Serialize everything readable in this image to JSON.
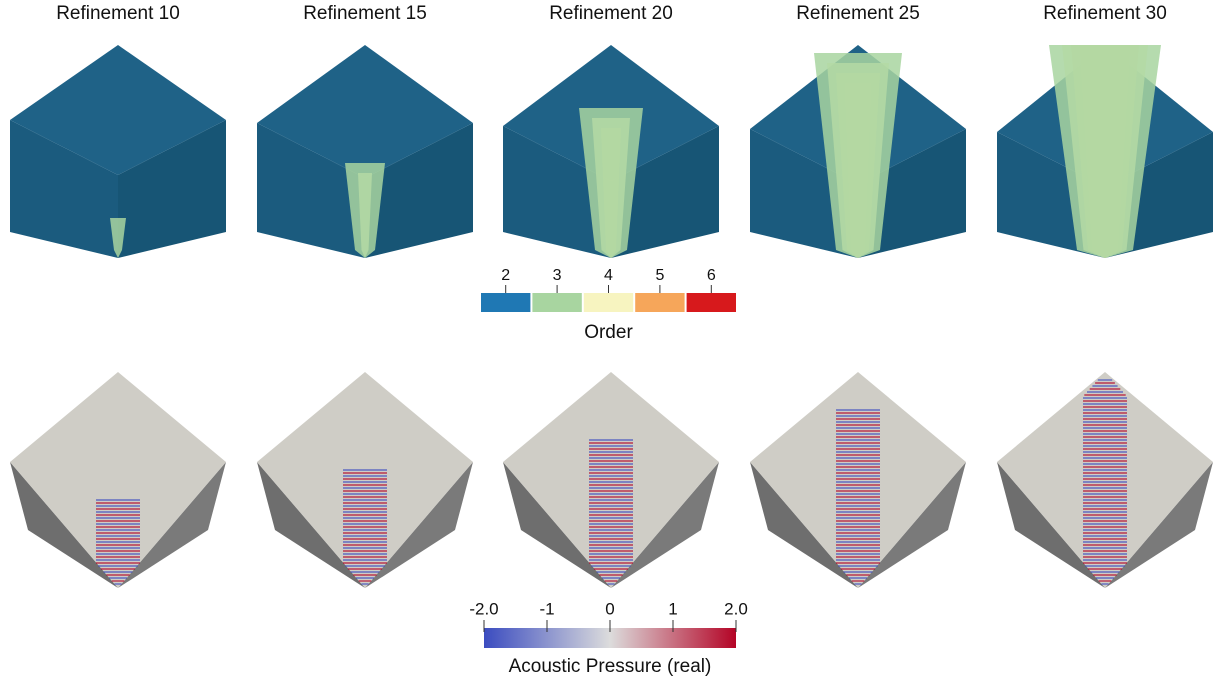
{
  "panels": [
    {
      "title": "Refinement 10"
    },
    {
      "title": "Refinement 15"
    },
    {
      "title": "Refinement 20"
    },
    {
      "title": "Refinement 25"
    },
    {
      "title": "Refinement 30"
    }
  ],
  "order_colorbar": {
    "title": "Order",
    "ticks": [
      2,
      3,
      4,
      5,
      6
    ],
    "colors": [
      "#1f78b4",
      "#a8d5a0",
      "#f7f4c0",
      "#f6a65a",
      "#d7191c"
    ]
  },
  "pressure_colorbar": {
    "title": "Acoustic Pressure (real)",
    "range": [
      -2,
      2
    ],
    "ticks": [
      {
        "value": -2,
        "label": "-2.0"
      },
      -1,
      0,
      1,
      {
        "value": 2,
        "label": "2.0"
      }
    ],
    "colormap": [
      "#3b4cc0",
      "#dcdcdc",
      "#b40426"
    ]
  }
}
